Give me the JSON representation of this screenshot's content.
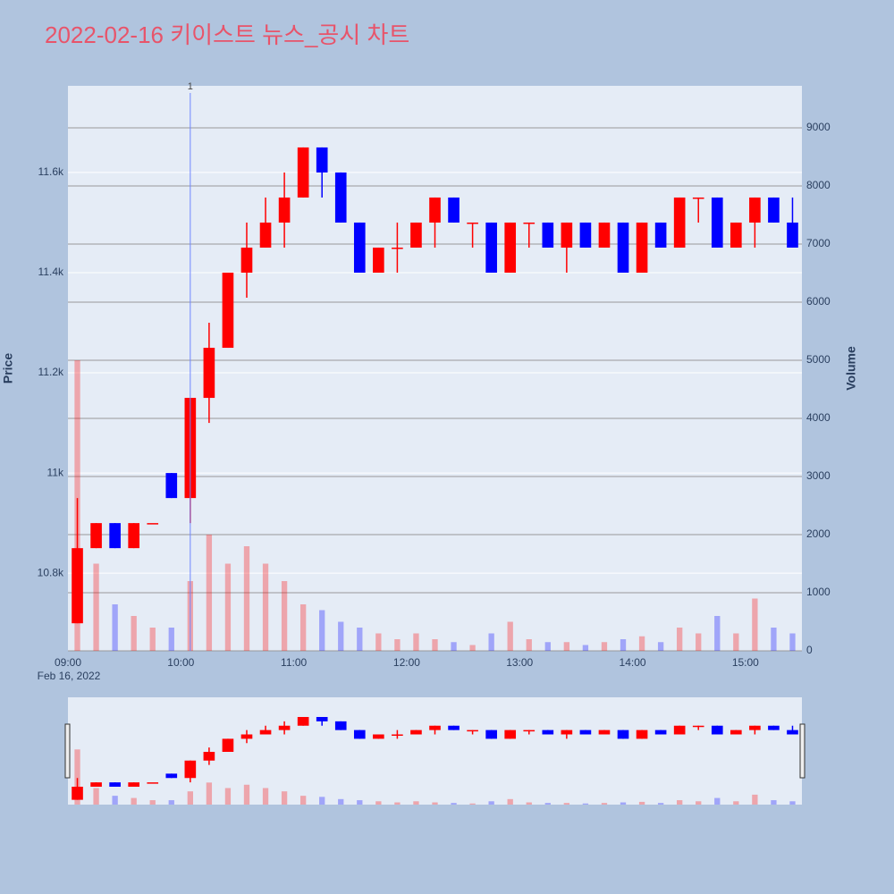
{
  "chart_data": {
    "type": "candlestick",
    "title": "2022-02-16 키이스트 뉴스_공시 차트",
    "y_label": "Price",
    "y2_label": "Volume",
    "x_date_label": "Feb 16, 2022",
    "x": [
      "09:00",
      "09:10",
      "09:20",
      "09:30",
      "09:40",
      "09:50",
      "10:00",
      "10:10",
      "10:20",
      "10:30",
      "10:40",
      "10:50",
      "11:00",
      "11:10",
      "11:20",
      "11:30",
      "11:40",
      "11:50",
      "12:00",
      "12:10",
      "12:20",
      "12:30",
      "12:40",
      "12:50",
      "13:00",
      "13:10",
      "13:20",
      "13:30",
      "13:40",
      "13:50",
      "14:00",
      "14:10",
      "14:20",
      "14:30",
      "14:40",
      "14:50",
      "15:00",
      "15:10",
      "15:20"
    ],
    "open": [
      10700,
      10850,
      10900,
      10850,
      10900,
      11000,
      10950,
      11150,
      11250,
      11400,
      11450,
      11500,
      11550,
      11650,
      11600,
      11500,
      11400,
      11450,
      11450,
      11500,
      11550,
      11500,
      11500,
      11400,
      11500,
      11500,
      11450,
      11500,
      11450,
      11500,
      11400,
      11500,
      11450,
      11550,
      11550,
      11450,
      11500,
      11550,
      11500
    ],
    "high": [
      10950,
      10900,
      10900,
      10900,
      10900,
      11000,
      11150,
      11300,
      11400,
      11500,
      11550,
      11600,
      11650,
      11650,
      11600,
      11500,
      11450,
      11500,
      11500,
      11550,
      11550,
      11500,
      11500,
      11500,
      11500,
      11500,
      11500,
      11500,
      11500,
      11500,
      11500,
      11500,
      11550,
      11550,
      11550,
      11500,
      11550,
      11550,
      11550
    ],
    "low": [
      10700,
      10850,
      10850,
      10850,
      10900,
      10950,
      10900,
      11100,
      11250,
      11350,
      11450,
      11450,
      11550,
      11550,
      11500,
      11400,
      11400,
      11400,
      11450,
      11450,
      11500,
      11450,
      11400,
      11400,
      11450,
      11450,
      11400,
      11450,
      11450,
      11400,
      11400,
      11450,
      11450,
      11500,
      11450,
      11450,
      11450,
      11500,
      11450
    ],
    "close": [
      10850,
      10900,
      10850,
      10900,
      10900,
      10950,
      11150,
      11250,
      11400,
      11450,
      11500,
      11550,
      11650,
      11600,
      11500,
      11400,
      11450,
      11450,
      11500,
      11550,
      11500,
      11500,
      11400,
      11500,
      11500,
      11450,
      11500,
      11450,
      11500,
      11400,
      11500,
      11450,
      11550,
      11550,
      11450,
      11500,
      11550,
      11500,
      11450
    ],
    "volume": [
      5000,
      1500,
      800,
      600,
      400,
      400,
      1200,
      2000,
      1500,
      1800,
      1500,
      1200,
      800,
      700,
      500,
      400,
      300,
      200,
      300,
      200,
      150,
      100,
      300,
      500,
      200,
      150,
      150,
      100,
      150,
      200,
      250,
      150,
      400,
      300,
      600,
      300,
      900,
      400,
      300
    ],
    "increasing_color": "#ff0000",
    "decreasing_color": "#0000ff",
    "xlim": [
      "09:00",
      "15:30"
    ],
    "xticks": [
      "09:00",
      "10:00",
      "11:00",
      "12:00",
      "13:00",
      "14:00",
      "15:00"
    ],
    "ylim": [
      10645,
      11773
    ],
    "yticks": [
      {
        "value": 10800,
        "label": "10.8k"
      },
      {
        "value": 11000,
        "label": "11k"
      },
      {
        "value": 11200,
        "label": "11.2k"
      },
      {
        "value": 11400,
        "label": "11.4k"
      },
      {
        "value": 11600,
        "label": "11.6k"
      }
    ],
    "y2lim": [
      0,
      9723
    ],
    "y2ticks": [
      0,
      1000,
      2000,
      3000,
      4000,
      5000,
      6000,
      7000,
      8000,
      9000
    ],
    "annotation": {
      "x": "10:05",
      "text": "1"
    },
    "grid": true,
    "rangeslider": true
  }
}
